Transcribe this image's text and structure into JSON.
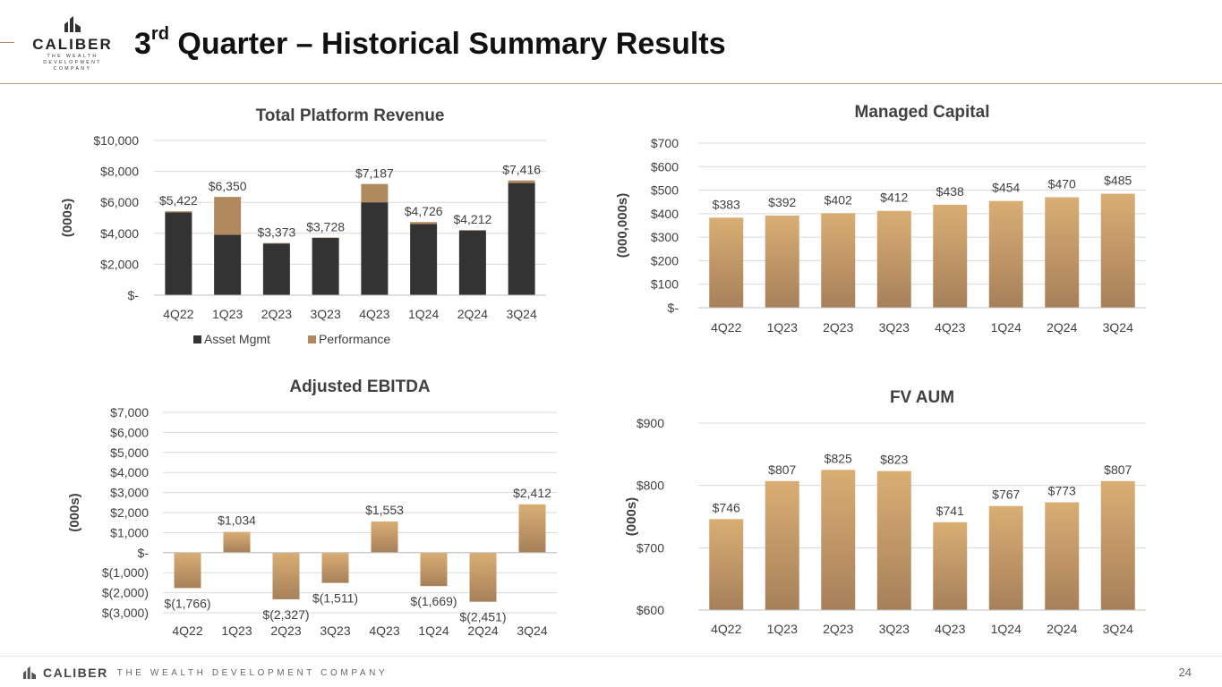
{
  "header": {
    "title_main": "3",
    "title_sup": "rd",
    "title_rest": " Quarter – Historical Summary Results",
    "logo_brand": "CALIBER",
    "logo_sub_1": "THE WEALTH DEVELOPMENT",
    "logo_sub_2": "COMPANY"
  },
  "footer": {
    "brand": "CALIBER",
    "tagline": "THE WEALTH DEVELOPMENT COMPANY",
    "page_number": "24"
  },
  "colors": {
    "asset_mgmt": "#333333",
    "performance": "#b08a5e",
    "gold_top": "#d9ae74",
    "gold_bottom": "#a6805a",
    "grid": "#d9d9d9"
  },
  "chart_data": [
    {
      "id": "revenue",
      "type": "bar",
      "stacked": true,
      "title": "Total Platform Revenue",
      "ylabel": "(000s)",
      "categories": [
        "4Q22",
        "1Q23",
        "2Q23",
        "3Q23",
        "4Q23",
        "1Q24",
        "2Q24",
        "3Q24"
      ],
      "series": [
        {
          "name": "Asset Mgmt",
          "values": [
            5350,
            3900,
            3340,
            3700,
            6000,
            4600,
            4180,
            7250
          ]
        },
        {
          "name": "Performance",
          "values": [
            72,
            2450,
            33,
            28,
            1187,
            126,
            32,
            166
          ]
        }
      ],
      "totals": [
        5422,
        6350,
        3373,
        3728,
        7187,
        4726,
        4212,
        7416
      ],
      "total_labels": [
        "$5,422",
        "$6,350",
        "$3,373",
        "$3,728",
        "$7,187",
        "$4,726",
        "$4,212",
        "$7,416"
      ],
      "ylim": [
        0,
        10000
      ],
      "yticks": [
        0,
        2000,
        4000,
        6000,
        8000,
        10000
      ],
      "ytick_labels": [
        "$-",
        "$2,000",
        "$4,000",
        "$6,000",
        "$8,000",
        "$10,000"
      ],
      "legend": [
        "Asset Mgmt",
        "Performance"
      ],
      "legend_position": "bottom"
    },
    {
      "id": "capital",
      "type": "bar",
      "title": "Managed Capital",
      "ylabel": "(000,000s)",
      "categories": [
        "4Q22",
        "1Q23",
        "2Q23",
        "3Q23",
        "4Q23",
        "1Q24",
        "2Q24",
        "3Q24"
      ],
      "values": [
        383,
        392,
        402,
        412,
        438,
        454,
        470,
        485
      ],
      "value_labels": [
        "$383",
        "$392",
        "$402",
        "$412",
        "$438",
        "$454",
        "$470",
        "$485"
      ],
      "ylim": [
        0,
        700
      ],
      "yticks": [
        0,
        100,
        200,
        300,
        400,
        500,
        600,
        700
      ],
      "ytick_labels": [
        "$-",
        "$100",
        "$200",
        "$300",
        "$400",
        "$500",
        "$600",
        "$700"
      ]
    },
    {
      "id": "ebitda",
      "type": "bar",
      "title": "Adjusted EBITDA",
      "ylabel": "(000s)",
      "categories": [
        "4Q22",
        "1Q23",
        "2Q23",
        "3Q23",
        "4Q23",
        "1Q24",
        "2Q24",
        "3Q24"
      ],
      "values": [
        -1766,
        1034,
        -2327,
        -1511,
        1553,
        -1669,
        -2451,
        2412
      ],
      "value_labels": [
        "$(1,766)",
        "$1,034",
        "$(2,327)",
        "$(1,511)",
        "$1,553",
        "$(1,669)",
        "$(2,451)",
        "$2,412"
      ],
      "ylim": [
        -3000,
        7000
      ],
      "yticks": [
        -3000,
        -2000,
        -1000,
        0,
        1000,
        2000,
        3000,
        4000,
        5000,
        6000,
        7000
      ],
      "ytick_labels": [
        "$(3,000)",
        "$(2,000)",
        "$(1,000)",
        "$-",
        "$1,000",
        "$2,000",
        "$3,000",
        "$4,000",
        "$5,000",
        "$6,000",
        "$7,000"
      ]
    },
    {
      "id": "aum",
      "type": "bar",
      "title": "FV AUM",
      "ylabel": "(000s)",
      "categories": [
        "4Q22",
        "1Q23",
        "2Q23",
        "3Q23",
        "4Q23",
        "1Q24",
        "2Q24",
        "3Q24"
      ],
      "values": [
        746,
        807,
        825,
        823,
        741,
        767,
        773,
        807
      ],
      "value_labels": [
        "$746",
        "$807",
        "$825",
        "$823",
        "$741",
        "$767",
        "$773",
        "$807"
      ],
      "ylim": [
        600,
        900
      ],
      "yticks": [
        600,
        700,
        800,
        900
      ],
      "ytick_labels": [
        "$600",
        "$700",
        "$800",
        "$900"
      ]
    }
  ]
}
